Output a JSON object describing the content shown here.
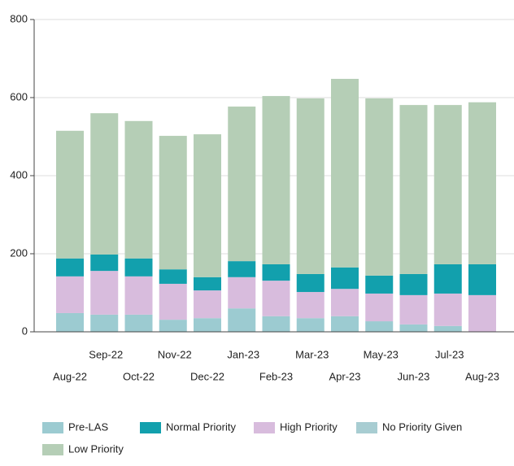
{
  "chart_data": {
    "type": "stacked_bar",
    "categories": [
      "Aug-22",
      "Sep-22",
      "Oct-22",
      "Nov-22",
      "Dec-22",
      "Jan-23",
      "Feb-23",
      "Mar-23",
      "Apr-23",
      "May-23",
      "Jun-23",
      "Jul-23",
      "Aug-23"
    ],
    "series": [
      {
        "name": "Pre-LAS",
        "color": "#9ccbd1",
        "values": [
          48,
          44,
          44,
          31,
          35,
          60,
          40,
          35,
          40,
          27,
          19,
          15,
          0
        ]
      },
      {
        "name": "High Priority",
        "color": "#d8bcdd",
        "values": [
          94,
          112,
          98,
          92,
          71,
          80,
          91,
          67,
          70,
          71,
          75,
          83,
          94
        ]
      },
      {
        "name": "Normal Priority",
        "color": "#12a0ad",
        "values": [
          46,
          42,
          46,
          37,
          34,
          41,
          42,
          46,
          55,
          46,
          54,
          75,
          79
        ]
      },
      {
        "name": "No Priority Given",
        "color": "#a8cdd2",
        "values": [
          0,
          0,
          0,
          0,
          0,
          0,
          0,
          0,
          0,
          0,
          0,
          0,
          0
        ]
      },
      {
        "name": "Low Priority",
        "color": "#b5ceb6",
        "values": [
          327,
          362,
          352,
          342,
          366,
          396,
          431,
          450,
          483,
          454,
          433,
          408,
          415
        ]
      }
    ],
    "legend_order": [
      "Pre-LAS",
      "Normal Priority",
      "High Priority",
      "No Priority Given",
      "Low Priority"
    ],
    "ylim": [
      0,
      800
    ],
    "yticks": [
      0,
      200,
      400,
      600,
      800
    ],
    "grid": true
  }
}
